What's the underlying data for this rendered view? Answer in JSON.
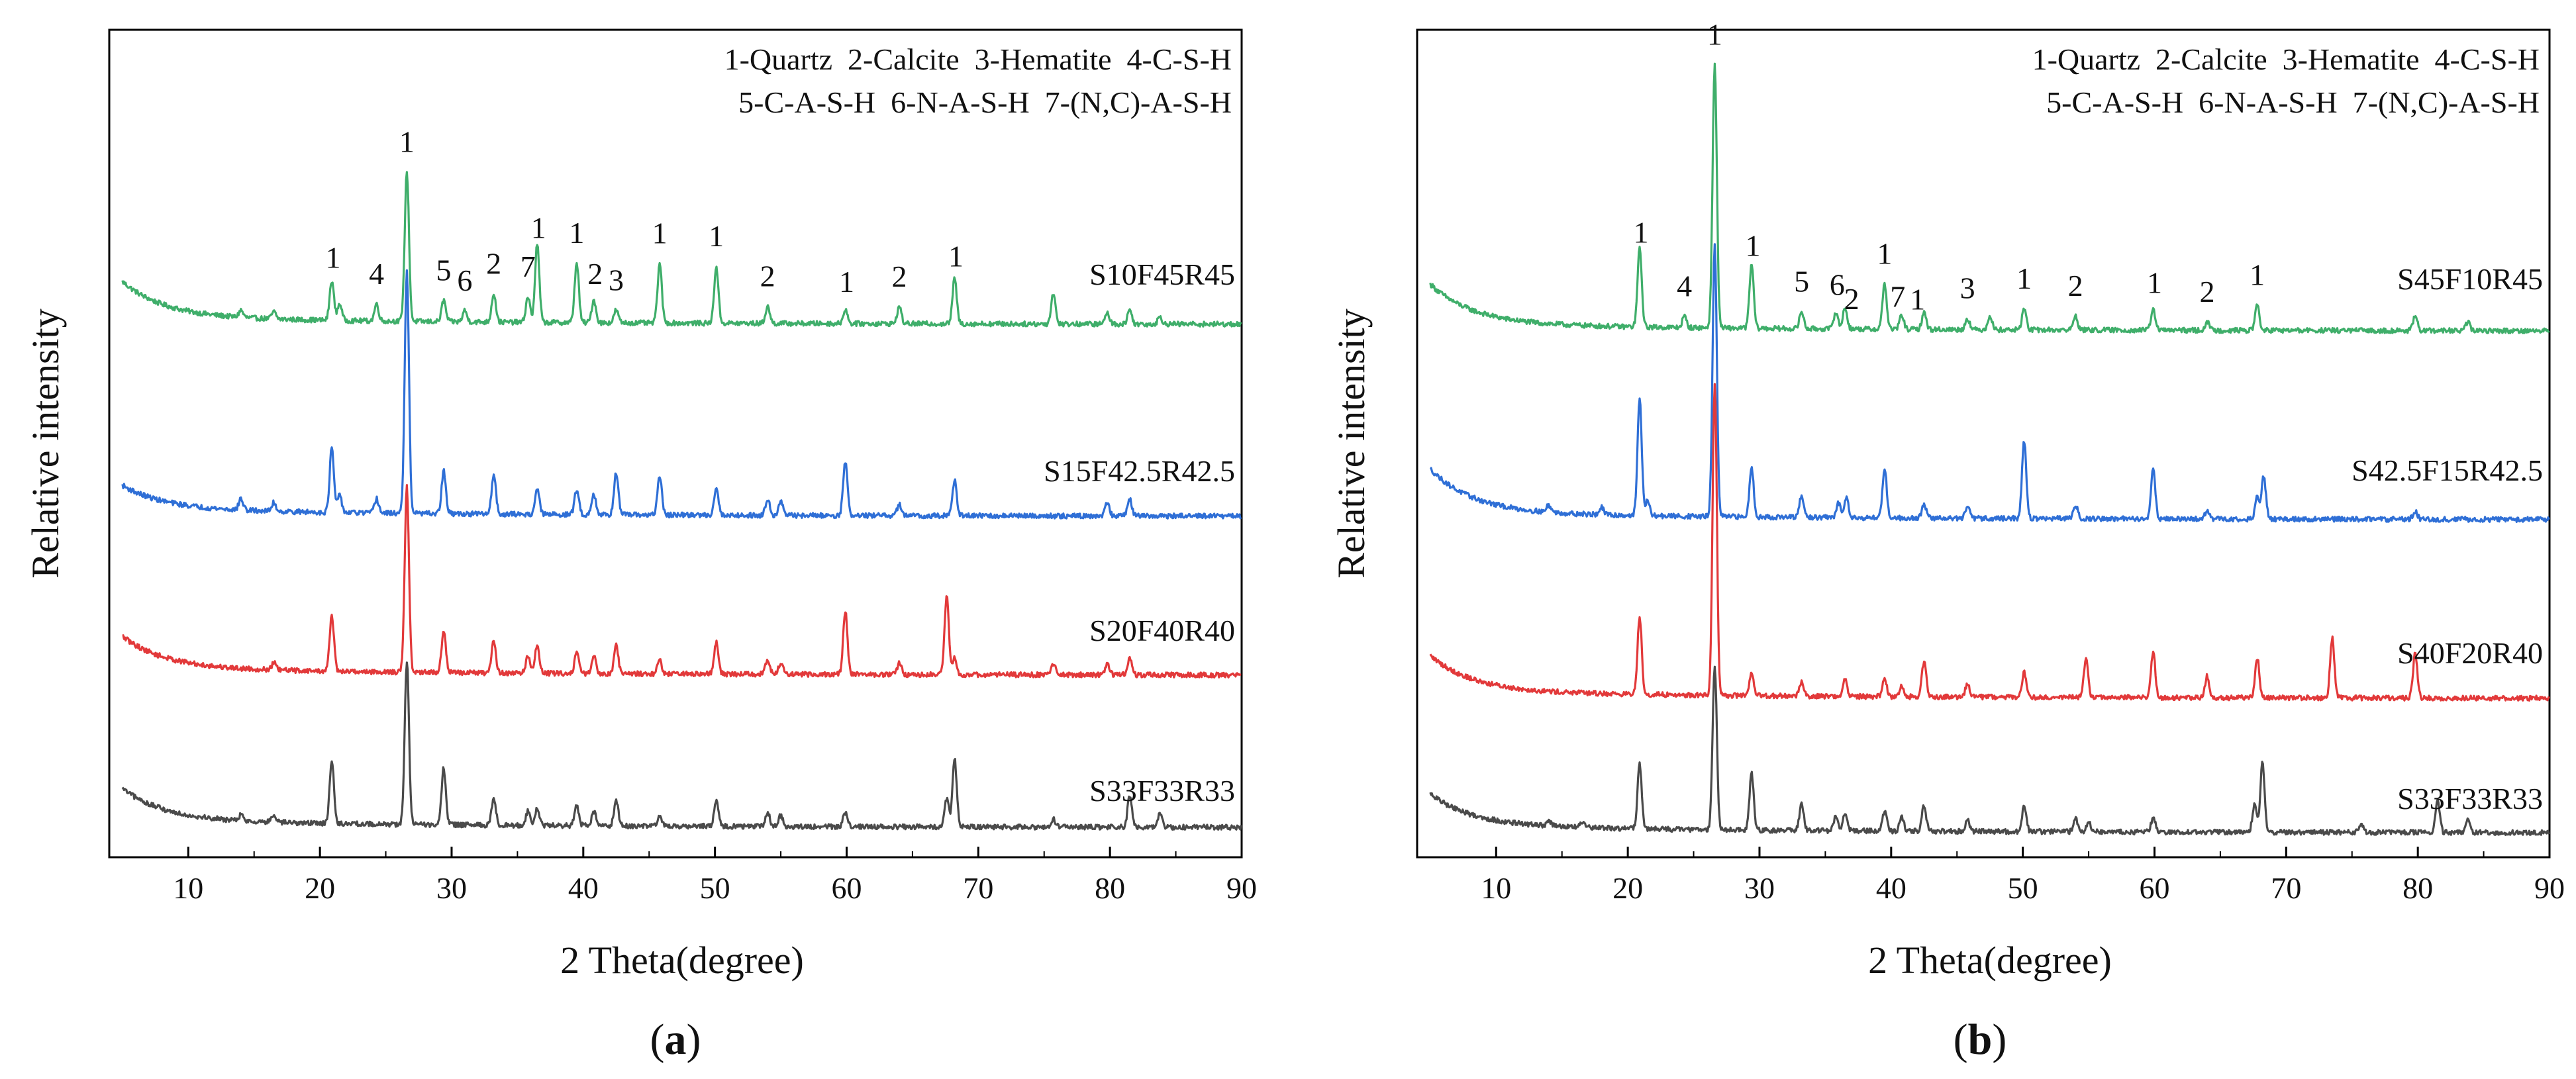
{
  "figure": {
    "panels": [
      "a",
      "b"
    ]
  },
  "colors": {
    "green": "#3fae6a",
    "blue": "#2f6fd6",
    "red": "#e2393a",
    "gray": "#4a4a4a",
    "axis": "#000000"
  },
  "chart_data": [
    {
      "type": "line",
      "panel_label": "a",
      "xlabel": "2 Theta(degree)",
      "ylabel": "Relative intensity",
      "xlim": [
        4,
        90
      ],
      "xticks": [
        10,
        20,
        30,
        40,
        50,
        60,
        70,
        80,
        90
      ],
      "grid": false,
      "legend_lines": [
        "1-Quartz  2-Calcite  3-Hematite  4-C-S-H",
        "5-C-A-S-H  6-N-A-S-H  7-(N,C)-A-S-H"
      ],
      "series": [
        {
          "name": "S10F45R45",
          "color": "green",
          "offset": 3,
          "hump": 0.45,
          "baseline": 0.0,
          "peaks": [
            [
              14,
              0.05
            ],
            [
              16.5,
              0.05
            ],
            [
              20.9,
              0.28
            ],
            [
              21.5,
              0.12
            ],
            [
              24.3,
              0.12
            ],
            [
              26.6,
              1.05
            ],
            [
              29.4,
              0.15
            ],
            [
              31.0,
              0.08
            ],
            [
              33.2,
              0.2
            ],
            [
              35.8,
              0.18
            ],
            [
              36.5,
              0.55
            ],
            [
              39.5,
              0.42
            ],
            [
              40.8,
              0.16
            ],
            [
              42.5,
              0.09
            ],
            [
              45.8,
              0.42
            ],
            [
              50.1,
              0.4
            ],
            [
              54.0,
              0.12
            ],
            [
              59.9,
              0.1
            ],
            [
              64.0,
              0.12
            ],
            [
              68.2,
              0.32
            ],
            [
              75.7,
              0.22
            ],
            [
              79.8,
              0.08
            ],
            [
              81.5,
              0.1
            ],
            [
              83.8,
              0.05
            ]
          ]
        },
        {
          "name": "S15F42.5R42.5",
          "color": "blue",
          "offset": 2,
          "hump": 0.3,
          "baseline": 0.0,
          "peaks": [
            [
              14,
              0.08
            ],
            [
              16.5,
              0.06
            ],
            [
              20.9,
              0.45
            ],
            [
              21.5,
              0.12
            ],
            [
              24.3,
              0.1
            ],
            [
              26.6,
              1.7
            ],
            [
              29.4,
              0.3
            ],
            [
              33.2,
              0.28
            ],
            [
              36.5,
              0.18
            ],
            [
              39.5,
              0.18
            ],
            [
              40.8,
              0.15
            ],
            [
              42.5,
              0.3
            ],
            [
              45.8,
              0.28
            ],
            [
              50.1,
              0.2
            ],
            [
              54.0,
              0.12
            ],
            [
              55.0,
              0.1
            ],
            [
              59.9,
              0.38
            ],
            [
              64.0,
              0.08
            ],
            [
              68.2,
              0.25
            ],
            [
              79.8,
              0.1
            ],
            [
              81.5,
              0.12
            ]
          ]
        },
        {
          "name": "S20F40R40",
          "color": "red",
          "offset": 1,
          "hump": 0.4,
          "baseline": 0.0,
          "peaks": [
            [
              16.5,
              0.05
            ],
            [
              20.9,
              0.4
            ],
            [
              26.6,
              1.3
            ],
            [
              29.4,
              0.3
            ],
            [
              33.2,
              0.22
            ],
            [
              35.8,
              0.12
            ],
            [
              36.5,
              0.2
            ],
            [
              39.5,
              0.15
            ],
            [
              40.8,
              0.12
            ],
            [
              42.5,
              0.2
            ],
            [
              45.8,
              0.1
            ],
            [
              50.1,
              0.22
            ],
            [
              54.0,
              0.1
            ],
            [
              55.0,
              0.08
            ],
            [
              59.9,
              0.45
            ],
            [
              64.0,
              0.08
            ],
            [
              67.6,
              0.55
            ],
            [
              68.2,
              0.12
            ],
            [
              75.7,
              0.08
            ],
            [
              79.8,
              0.08
            ],
            [
              81.5,
              0.12
            ]
          ]
        },
        {
          "name": "S33F33R33",
          "color": "gray",
          "offset": 0,
          "hump": 0.4,
          "baseline": 0.0,
          "peaks": [
            [
              14,
              0.04
            ],
            [
              16.5,
              0.04
            ],
            [
              20.9,
              0.45
            ],
            [
              26.6,
              1.15
            ],
            [
              29.4,
              0.4
            ],
            [
              33.2,
              0.18
            ],
            [
              35.8,
              0.1
            ],
            [
              36.5,
              0.12
            ],
            [
              39.5,
              0.14
            ],
            [
              40.8,
              0.1
            ],
            [
              42.5,
              0.18
            ],
            [
              45.8,
              0.08
            ],
            [
              50.1,
              0.18
            ],
            [
              54.0,
              0.1
            ],
            [
              55.0,
              0.08
            ],
            [
              59.9,
              0.1
            ],
            [
              67.6,
              0.2
            ],
            [
              68.2,
              0.48
            ],
            [
              75.7,
              0.06
            ],
            [
              81.5,
              0.22
            ],
            [
              83.8,
              0.1
            ]
          ]
        }
      ],
      "annotations": [
        {
          "label": "1",
          "x": 21.0
        },
        {
          "label": "4",
          "x": 24.3
        },
        {
          "label": "1",
          "x": 26.6
        },
        {
          "label": "5",
          "x": 29.4
        },
        {
          "label": "6",
          "x": 31.0
        },
        {
          "label": "2",
          "x": 33.2
        },
        {
          "label": "7",
          "x": 35.8
        },
        {
          "label": "1",
          "x": 36.6
        },
        {
          "label": "1",
          "x": 39.5
        },
        {
          "label": "2",
          "x": 40.9
        },
        {
          "label": "3",
          "x": 42.5
        },
        {
          "label": "1",
          "x": 45.8
        },
        {
          "label": "1",
          "x": 50.1
        },
        {
          "label": "2",
          "x": 54.0
        },
        {
          "label": "1",
          "x": 60.0
        },
        {
          "label": "2",
          "x": 64.0
        },
        {
          "label": "1",
          "x": 68.3
        }
      ]
    },
    {
      "type": "line",
      "panel_label": "b",
      "xlabel": "2 Theta(degree)",
      "ylabel": "Relative intensity",
      "xlim": [
        4,
        90
      ],
      "xticks": [
        10,
        20,
        30,
        40,
        50,
        60,
        70,
        80,
        90
      ],
      "grid": false,
      "legend_lines": [
        "1-Quartz  2-Calcite  3-Hematite  4-C-S-H",
        "5-C-A-S-H  6-N-A-S-H  7-(N,C)-A-S-H"
      ],
      "series": [
        {
          "name": "S45F10R45",
          "color": "green",
          "offset": 3,
          "hump": 0.5,
          "baseline": 0.0,
          "peaks": [
            [
              20.9,
              0.55
            ],
            [
              24.3,
              0.08
            ],
            [
              26.6,
              1.85
            ],
            [
              29.4,
              0.45
            ],
            [
              33.2,
              0.12
            ],
            [
              35.8,
              0.12
            ],
            [
              36.5,
              0.15
            ],
            [
              39.5,
              0.32
            ],
            [
              40.8,
              0.1
            ],
            [
              42.5,
              0.12
            ],
            [
              45.8,
              0.08
            ],
            [
              47.5,
              0.1
            ],
            [
              50.1,
              0.15
            ],
            [
              54.0,
              0.1
            ],
            [
              59.9,
              0.15
            ],
            [
              64.0,
              0.06
            ],
            [
              67.8,
              0.18
            ],
            [
              79.8,
              0.1
            ],
            [
              83.8,
              0.06
            ]
          ]
        },
        {
          "name": "S42.5F15R42.5",
          "color": "blue",
          "offset": 2,
          "hump": 0.55,
          "baseline": 0.0,
          "peaks": [
            [
              14,
              0.05
            ],
            [
              18,
              0.05
            ],
            [
              20.9,
              0.82
            ],
            [
              21.5,
              0.1
            ],
            [
              26.6,
              1.9
            ],
            [
              29.4,
              0.35
            ],
            [
              33.2,
              0.15
            ],
            [
              36.0,
              0.1
            ],
            [
              36.6,
              0.15
            ],
            [
              39.5,
              0.35
            ],
            [
              42.5,
              0.1
            ],
            [
              45.8,
              0.08
            ],
            [
              50.1,
              0.55
            ],
            [
              54.0,
              0.1
            ],
            [
              59.9,
              0.35
            ],
            [
              64.0,
              0.06
            ],
            [
              67.8,
              0.15
            ],
            [
              68.3,
              0.3
            ],
            [
              79.8,
              0.06
            ]
          ]
        },
        {
          "name": "S40F20R40",
          "color": "red",
          "offset": 1,
          "hump": 0.45,
          "baseline": 0.0,
          "peaks": [
            [
              20.9,
              0.55
            ],
            [
              26.6,
              2.2
            ],
            [
              29.4,
              0.15
            ],
            [
              33.2,
              0.1
            ],
            [
              36.5,
              0.12
            ],
            [
              39.5,
              0.12
            ],
            [
              40.8,
              0.08
            ],
            [
              42.5,
              0.25
            ],
            [
              45.8,
              0.1
            ],
            [
              50.1,
              0.18
            ],
            [
              54.8,
              0.28
            ],
            [
              59.9,
              0.32
            ],
            [
              64.0,
              0.15
            ],
            [
              67.8,
              0.28
            ],
            [
              73.5,
              0.42
            ],
            [
              79.8,
              0.32
            ]
          ]
        },
        {
          "name": "S33F33R33",
          "color": "gray",
          "offset": 0,
          "hump": 0.4,
          "baseline": 0.0,
          "peaks": [
            [
              14,
              0.04
            ],
            [
              16.5,
              0.04
            ],
            [
              20.9,
              0.45
            ],
            [
              26.6,
              1.15
            ],
            [
              29.4,
              0.4
            ],
            [
              33.2,
              0.18
            ],
            [
              35.8,
              0.1
            ],
            [
              36.5,
              0.12
            ],
            [
              39.5,
              0.14
            ],
            [
              40.8,
              0.1
            ],
            [
              42.5,
              0.18
            ],
            [
              45.8,
              0.08
            ],
            [
              50.1,
              0.18
            ],
            [
              54.0,
              0.1
            ],
            [
              55.0,
              0.08
            ],
            [
              59.9,
              0.1
            ],
            [
              67.6,
              0.2
            ],
            [
              68.2,
              0.48
            ],
            [
              75.7,
              0.06
            ],
            [
              81.5,
              0.22
            ],
            [
              83.8,
              0.1
            ]
          ]
        }
      ],
      "annotations": [
        {
          "label": "1",
          "x": 21.0
        },
        {
          "label": "4",
          "x": 24.3
        },
        {
          "label": "1",
          "x": 26.6
        },
        {
          "label": "1",
          "x": 29.5
        },
        {
          "label": "5",
          "x": 33.2
        },
        {
          "label": "6",
          "x": 35.9
        },
        {
          "label": "2",
          "x": 37.0
        },
        {
          "label": "1",
          "x": 39.5
        },
        {
          "label": "7",
          "x": 40.5
        },
        {
          "label": "1",
          "x": 42.0
        },
        {
          "label": "3",
          "x": 45.8
        },
        {
          "label": "1",
          "x": 50.1
        },
        {
          "label": "2",
          "x": 54.0
        },
        {
          "label": "1",
          "x": 60.0
        },
        {
          "label": "2",
          "x": 64.0
        },
        {
          "label": "1",
          "x": 67.8
        }
      ]
    }
  ]
}
